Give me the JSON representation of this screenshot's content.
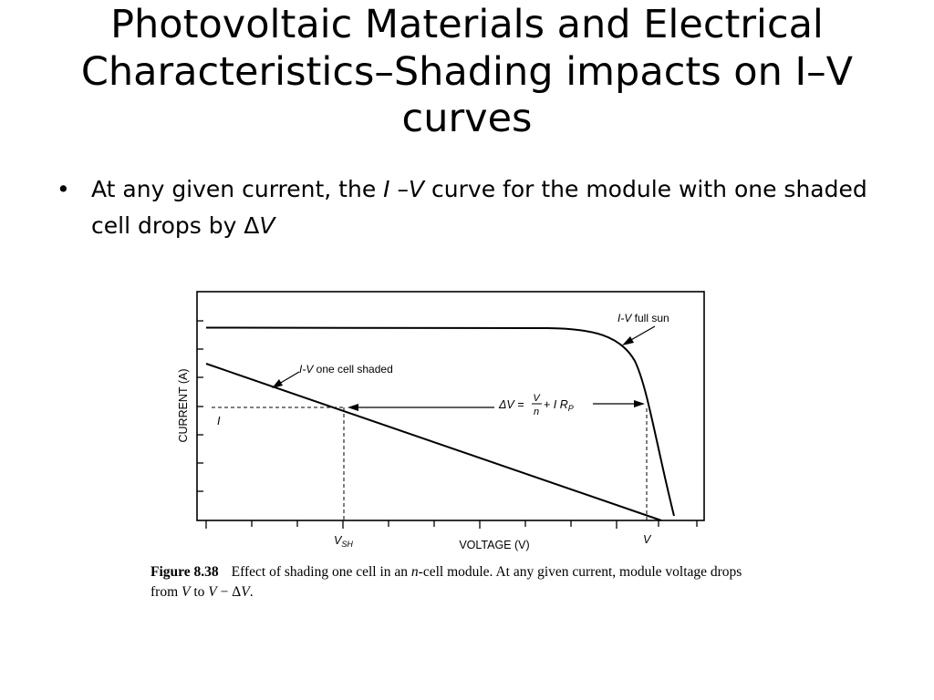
{
  "slide": {
    "title": "Photovoltaic Materials and Electrical Characteristics–Shading impacts on I–V curves",
    "bullet": {
      "part1": "At any given current, the ",
      "i_symbol": "I",
      "dash": " –",
      "v_symbol": "V",
      "part2": " curve for the module with one shaded cell drops by Δ",
      "dv_symbol": "V"
    }
  },
  "figure": {
    "ylabel": "CURRENT (A)",
    "xlabel": "VOLTAGE (V)",
    "curve_full_sun_label_prefix": "I-V",
    "curve_full_sun_label_suffix": " full sun",
    "curve_shaded_label_prefix": "I-V",
    "curve_shaded_label_suffix": " one cell shaded",
    "current_marker": "I",
    "vsh_main": "V",
    "vsh_sub": "SH",
    "v_marker": "V",
    "formula": {
      "lhs": "ΔV =",
      "frac_num": "V",
      "frac_den": "n",
      "rhs_plus": "+ ",
      "rhs_i": "I",
      "rhs_r": " R",
      "rhs_sub": "P"
    }
  },
  "caption": {
    "label": "Figure 8.38",
    "text_a": "Effect of shading one cell in an ",
    "n": "n",
    "text_b": "-cell module. At any given current, module voltage drops from ",
    "v1": "V",
    "to": " to ",
    "v2": "V",
    "minus": " − Δ",
    "v3": "V",
    "period": "."
  }
}
